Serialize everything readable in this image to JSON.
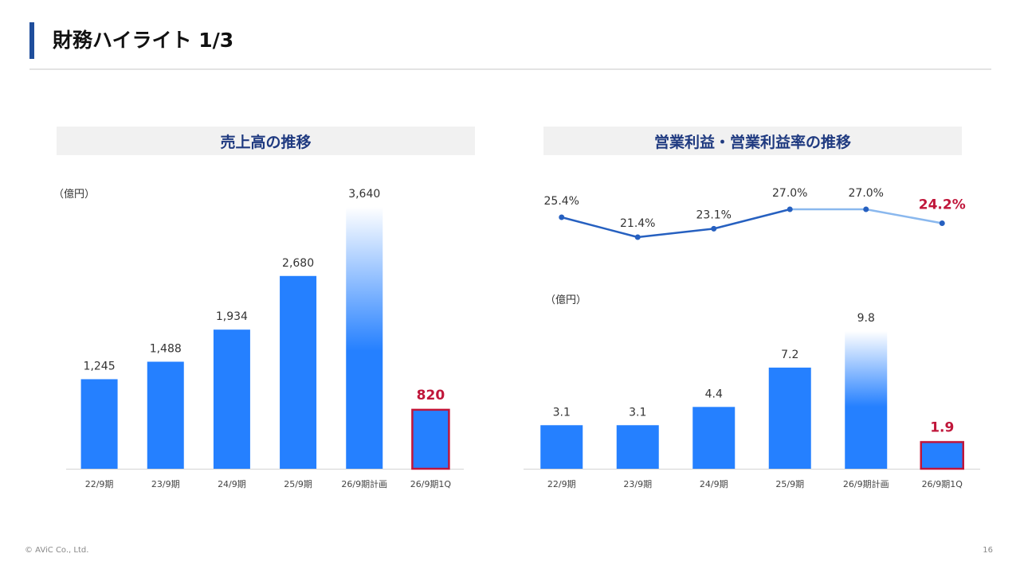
{
  "page": {
    "title": "財務ハイライト 1/3",
    "copyright": "© AViC Co., Ltd.",
    "page_number": "16"
  },
  "colors": {
    "bar": "#2580ff",
    "highlight": "#c0163a",
    "line_dark": "#2660c0",
    "line_light": "#8ab8ee",
    "title_accent": "#1f4e9c",
    "header_text": "#1f3a80"
  },
  "chart_data": [
    {
      "type": "bar",
      "title": "売上高の推移",
      "unit_label": "（億円）",
      "categories": [
        "22/9期",
        "23/9期",
        "24/9期",
        "25/9期",
        "26/9期計画",
        "26/9期1Q"
      ],
      "values": [
        1245,
        1488,
        1934,
        2680,
        3640,
        820
      ],
      "value_labels": [
        "1,245",
        "1,488",
        "1,934",
        "2,680",
        "3,640",
        "820"
      ],
      "highlight_index": 5,
      "forecast_index": 4,
      "ylim": [
        0,
        3640
      ]
    },
    {
      "type": "bar",
      "title": "営業利益・営業利益率の推移",
      "unit_label": "（億円）",
      "categories": [
        "22/9期",
        "23/9期",
        "24/9期",
        "25/9期",
        "26/9期計画",
        "26/9期1Q"
      ],
      "values": [
        3.1,
        3.1,
        4.4,
        7.2,
        9.8,
        1.9
      ],
      "value_labels": [
        "3.1",
        "3.1",
        "4.4",
        "7.2",
        "9.8",
        "1.9"
      ],
      "highlight_index": 5,
      "forecast_index": 4,
      "ylim": [
        0,
        9.8
      ],
      "margin_series": {
        "type": "line",
        "values": [
          25.4,
          21.4,
          23.1,
          27.0,
          27.0,
          24.2
        ],
        "value_labels": [
          "25.4%",
          "21.4%",
          "23.1%",
          "27.0%",
          "27.0%",
          "24.2%"
        ],
        "ylim": [
          21.4,
          27.0
        ]
      }
    }
  ]
}
